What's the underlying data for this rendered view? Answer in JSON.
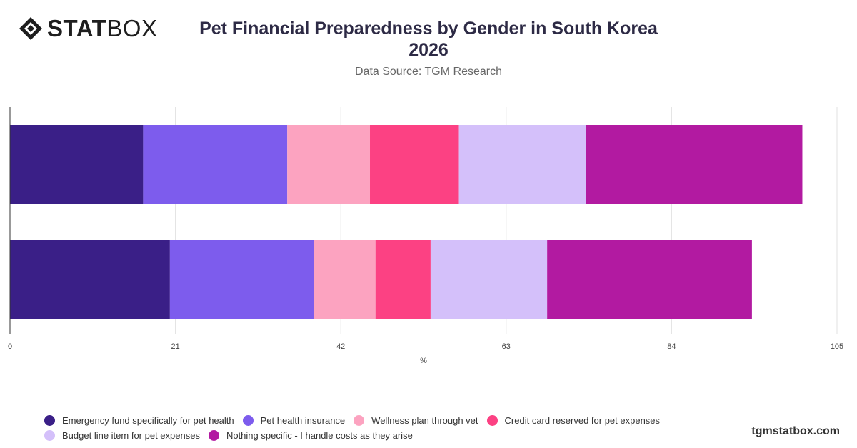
{
  "brand": {
    "logo_bold": "STAT",
    "logo_light": "BOX",
    "watermark": "tgmstatbox.com"
  },
  "header": {
    "title_line1": "Pet Financial Preparedness by Gender in South Korea",
    "title_line2": "2026",
    "subtitle": "Data Source: TGM Research"
  },
  "chart_data": {
    "type": "bar",
    "orientation": "horizontal",
    "stacked": true,
    "title": "Pet Financial Preparedness by Gender in South Korea 2026",
    "subtitle": "Data Source: TGM Research",
    "xlabel": "%",
    "ylabel": "",
    "xlim": [
      0,
      105
    ],
    "x_ticks": [
      0,
      21,
      42,
      63,
      84,
      105
    ],
    "grid": true,
    "legend_position": "bottom",
    "categories": [
      "",
      ""
    ],
    "series": [
      {
        "name": "Emergency fund specifically for pet health",
        "color": "#3a1f87",
        "values": [
          16.9,
          20.3
        ]
      },
      {
        "name": "Pet health insurance",
        "color": "#7d5ced",
        "values": [
          18.3,
          18.3
        ]
      },
      {
        "name": "Wellness plan through vet",
        "color": "#fca3c0",
        "values": [
          10.5,
          7.8
        ]
      },
      {
        "name": "Credit card reserved for pet expenses",
        "color": "#fc4183",
        "values": [
          11.3,
          7.0
        ]
      },
      {
        "name": "Budget line item for pet expenses",
        "color": "#d4c0fa",
        "values": [
          16.1,
          14.8
        ]
      },
      {
        "name": "Nothing specific - I handle costs as they arise",
        "color": "#b21aa1",
        "values": [
          27.5,
          26.0
        ]
      }
    ]
  }
}
